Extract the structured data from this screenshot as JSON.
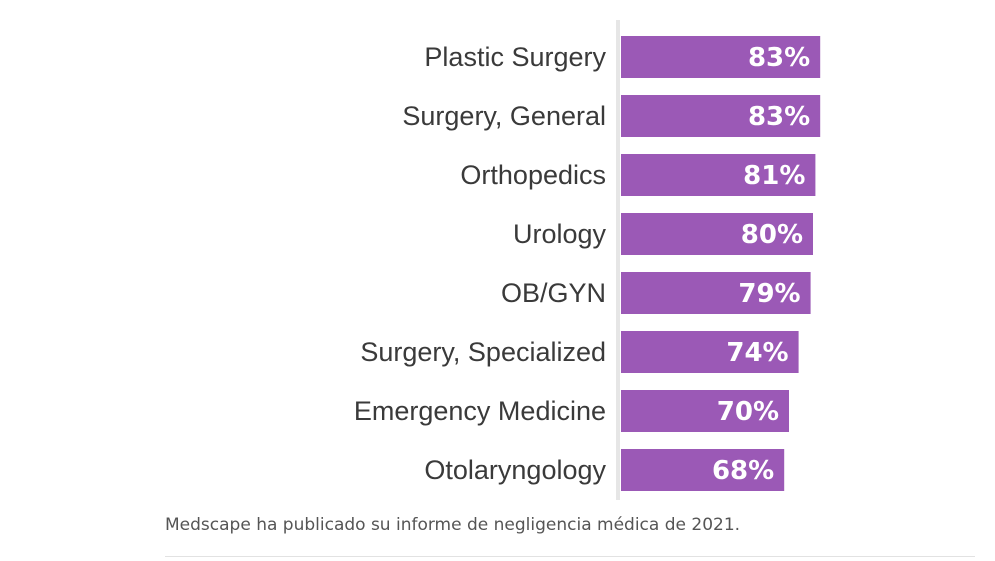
{
  "chart_data": {
    "type": "bar",
    "orientation": "horizontal",
    "categories": [
      "Plastic Surgery",
      "Surgery, General",
      "Orthopedics",
      "Urology",
      "OB/GYN",
      "Surgery, Specialized",
      "Emergency Medicine",
      "Otolaryngology"
    ],
    "values": [
      83,
      83,
      81,
      80,
      79,
      74,
      70,
      68
    ],
    "value_labels": [
      "83%",
      "83%",
      "81%",
      "80%",
      "79%",
      "74%",
      "70%",
      "68%"
    ],
    "title": "",
    "xlabel": "",
    "ylabel": "",
    "grid": false,
    "legend": "none",
    "bar_color": "#9b59b6"
  },
  "caption": {
    "text": "Medscape ha publicado su informe de negligencia médica de 2021."
  }
}
